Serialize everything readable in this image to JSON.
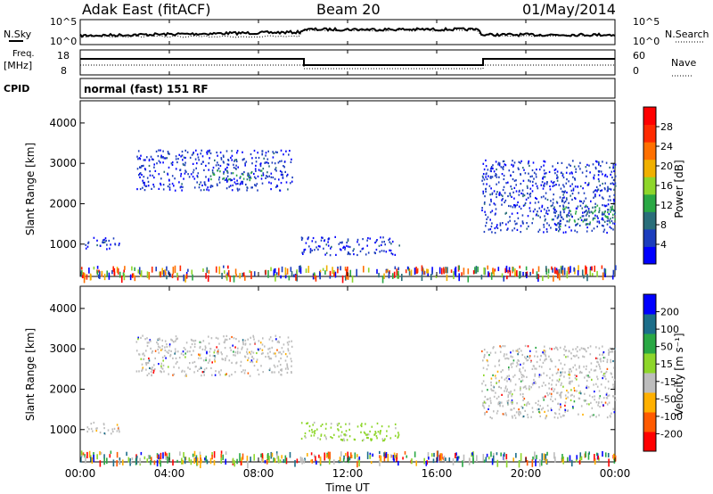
{
  "header": {
    "site": "Adak East (fitACF)",
    "beam": "Beam 20",
    "date": "01/May/2014"
  },
  "panel_labels": {
    "nsky": "N.Sky",
    "nsearch": "N.Search",
    "freq": "Freq.",
    "freq_unit": "[MHz]",
    "nave": "Nave",
    "cpid": "CPID",
    "cpid_value": "normal (fast) 151 RF"
  },
  "noise_panel": {
    "left_ticks": [
      "10^5",
      "10^0"
    ],
    "right_ticks": [
      "10^5",
      "10^0"
    ]
  },
  "freq_panel": {
    "left_ticks": [
      "18",
      "8"
    ],
    "right_ticks": [
      "60",
      "0"
    ]
  },
  "time_axis": {
    "label": "Time UT",
    "ticks": [
      "00:00",
      "04:00",
      "08:00",
      "12:00",
      "16:00",
      "20:00",
      "00:00"
    ]
  },
  "colors": {
    "power": [
      "#0000ff",
      "#1c3dbd",
      "#2a6e7a",
      "#2aa844",
      "#8ed62a",
      "#f0b000",
      "#ff7000",
      "#ff2a00",
      "#ff0000"
    ],
    "velocity": [
      "#ff0000",
      "#ff5a00",
      "#ffb000",
      "#bdbdbd",
      "#8ed62a",
      "#2aa844",
      "#1c6e8a",
      "#0000ff"
    ]
  },
  "chart_data": [
    {
      "type": "heatmap",
      "name": "power",
      "ylabel": "Slant Range [km]",
      "xlabel": "",
      "yticks": [
        "1000",
        "2000",
        "3000",
        "4000"
      ],
      "ylim": [
        200,
        4550
      ],
      "xlim": [
        0,
        24
      ],
      "colorbar_label": "Power [dB]",
      "colorbar_ticks": [
        "4",
        "8",
        "12",
        "16",
        "20",
        "24",
        "28"
      ],
      "regions": [
        {
          "t0": 2.5,
          "t1": 9.5,
          "r0": 2350,
          "r1": 3350,
          "level": "low"
        },
        {
          "t0": 5.8,
          "t1": 8.2,
          "r0": 2600,
          "r1": 2850,
          "level": "mid"
        },
        {
          "t0": 9.9,
          "t1": 14.3,
          "r0": 750,
          "r1": 1200,
          "level": "low"
        },
        {
          "t0": 0.2,
          "t1": 1.8,
          "r0": 900,
          "r1": 1200,
          "level": "low"
        },
        {
          "t0": 18.0,
          "t1": 24.0,
          "r0": 1300,
          "r1": 3100,
          "level": "low"
        },
        {
          "t0": 21.0,
          "t1": 24.0,
          "r0": 1450,
          "r1": 2000,
          "level": "mid"
        }
      ]
    },
    {
      "type": "heatmap",
      "name": "velocity",
      "ylabel": "Slant Range [km]",
      "xlabel": "Time UT",
      "yticks": [
        "1000",
        "2000",
        "3000",
        "4000"
      ],
      "ylim": [
        200,
        4550
      ],
      "xlim": [
        0,
        24
      ],
      "colorbar_label": "Velocity [m s⁻¹]",
      "colorbar_ticks": [
        "200",
        "100",
        "50",
        "15",
        "-15",
        "-50",
        "-100",
        "-200"
      ],
      "regions": [
        {
          "t0": 2.5,
          "t1": 9.5,
          "r0": 2350,
          "r1": 3350,
          "level": "gray"
        },
        {
          "t0": 9.9,
          "t1": 14.3,
          "r0": 750,
          "r1": 1200,
          "level": "green"
        },
        {
          "t0": 0.2,
          "t1": 1.8,
          "r0": 900,
          "r1": 1200,
          "level": "gray"
        },
        {
          "t0": 18.0,
          "t1": 24.0,
          "r0": 1300,
          "r1": 3100,
          "level": "gray"
        }
      ]
    }
  ]
}
